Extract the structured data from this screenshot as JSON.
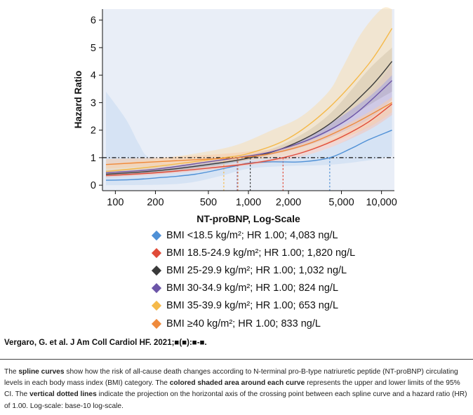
{
  "chart_data": {
    "type": "line",
    "xlabel": "NT-proBNP, Log-Scale",
    "ylabel": "Hazard Ratio",
    "xscale": "log10",
    "xlim": [
      80,
      12500
    ],
    "ylim": [
      -0.2,
      6.4
    ],
    "x_ticks": [
      {
        "value": 100,
        "label": "100"
      },
      {
        "value": 200,
        "label": "200"
      },
      {
        "value": 500,
        "label": "500"
      },
      {
        "value": 1000,
        "label": "1,000"
      },
      {
        "value": 2000,
        "label": "2,000"
      },
      {
        "value": 5000,
        "label": "5,000"
      },
      {
        "value": 10000,
        "label": "10,000"
      }
    ],
    "y_ticks": [
      {
        "value": 0,
        "label": "0"
      },
      {
        "value": 1,
        "label": "1"
      },
      {
        "value": 2,
        "label": "2"
      },
      {
        "value": 3,
        "label": "3"
      },
      {
        "value": 4,
        "label": "4"
      },
      {
        "value": 5,
        "label": "5"
      },
      {
        "value": 6,
        "label": "6"
      }
    ],
    "reference_line": {
      "y": 1,
      "style": "dash-dot",
      "color": "#111111"
    },
    "series": [
      {
        "name": "BMI <18.5 kg/m²",
        "color": "#4f90d6",
        "fill": "#c6daf2",
        "crossing": 4083,
        "points": [
          [
            85,
            0.18
          ],
          [
            130,
            0.2
          ],
          [
            200,
            0.26
          ],
          [
            400,
            0.4
          ],
          [
            800,
            0.7
          ],
          [
            1000,
            0.8
          ],
          [
            1500,
            0.85
          ],
          [
            2500,
            0.85
          ],
          [
            4083,
            1.0
          ],
          [
            6000,
            1.35
          ],
          [
            8000,
            1.65
          ],
          [
            12000,
            2.0
          ]
        ],
        "lower": [
          [
            85,
            0.0
          ],
          [
            300,
            0.05
          ],
          [
            600,
            0.32
          ],
          [
            1000,
            0.6
          ],
          [
            2000,
            0.7
          ],
          [
            4000,
            0.74
          ],
          [
            8000,
            0.9
          ],
          [
            12000,
            1.05
          ]
        ],
        "upper": [
          [
            85,
            3.4
          ],
          [
            120,
            2.4
          ],
          [
            150,
            1.5
          ],
          [
            180,
            1.0
          ],
          [
            300,
            0.72
          ],
          [
            600,
            1.05
          ],
          [
            1000,
            1.05
          ],
          [
            2500,
            1.07
          ],
          [
            5000,
            1.55
          ],
          [
            8000,
            2.2
          ],
          [
            12000,
            2.95
          ]
        ]
      },
      {
        "name": "BMI 18.5-24.9 kg/m²",
        "color": "#e04b38",
        "fill": "#f6c4ba",
        "crossing": 1820,
        "points": [
          [
            85,
            0.35
          ],
          [
            200,
            0.45
          ],
          [
            500,
            0.62
          ],
          [
            1000,
            0.78
          ],
          [
            1820,
            1.0
          ],
          [
            3000,
            1.3
          ],
          [
            5000,
            1.75
          ],
          [
            8000,
            2.3
          ],
          [
            12000,
            2.95
          ]
        ],
        "lower": [
          [
            85,
            0.28
          ],
          [
            200,
            0.38
          ],
          [
            500,
            0.55
          ],
          [
            1000,
            0.72
          ],
          [
            2000,
            0.93
          ],
          [
            4000,
            1.35
          ],
          [
            8000,
            2.0
          ],
          [
            12000,
            2.55
          ]
        ],
        "upper": [
          [
            85,
            0.45
          ],
          [
            200,
            0.55
          ],
          [
            500,
            0.7
          ],
          [
            1000,
            0.85
          ],
          [
            2000,
            1.1
          ],
          [
            4000,
            1.6
          ],
          [
            8000,
            2.45
          ],
          [
            12000,
            3.05
          ]
        ]
      },
      {
        "name": "BMI 25-29.9 kg/m²",
        "color": "#3a3a3a",
        "fill": "#a8a8a8",
        "crossing": 1032,
        "points": [
          [
            85,
            0.4
          ],
          [
            200,
            0.52
          ],
          [
            500,
            0.75
          ],
          [
            1032,
            1.0
          ],
          [
            2000,
            1.42
          ],
          [
            4000,
            2.2
          ],
          [
            8000,
            3.5
          ],
          [
            12000,
            4.5
          ]
        ],
        "lower": [
          [
            85,
            0.32
          ],
          [
            200,
            0.45
          ],
          [
            500,
            0.68
          ],
          [
            1000,
            0.92
          ],
          [
            2000,
            1.3
          ],
          [
            4000,
            1.95
          ],
          [
            8000,
            2.9
          ],
          [
            12000,
            3.4
          ]
        ],
        "upper": [
          [
            85,
            0.5
          ],
          [
            200,
            0.62
          ],
          [
            500,
            0.84
          ],
          [
            1000,
            1.08
          ],
          [
            2000,
            1.58
          ],
          [
            4000,
            2.55
          ],
          [
            8000,
            4.2
          ],
          [
            12000,
            5.0
          ]
        ]
      },
      {
        "name": "BMI 30-34.9 kg/m²",
        "color": "#6c55a8",
        "fill": "#b9acd8",
        "crossing": 824,
        "points": [
          [
            85,
            0.45
          ],
          [
            200,
            0.58
          ],
          [
            500,
            0.85
          ],
          [
            824,
            1.0
          ],
          [
            1500,
            1.22
          ],
          [
            3000,
            1.7
          ],
          [
            6000,
            2.5
          ],
          [
            12000,
            3.8
          ]
        ],
        "lower": [
          [
            85,
            0.38
          ],
          [
            200,
            0.5
          ],
          [
            500,
            0.78
          ],
          [
            1000,
            0.98
          ],
          [
            2000,
            1.25
          ],
          [
            4000,
            1.72
          ],
          [
            8000,
            2.4
          ],
          [
            12000,
            3.1
          ]
        ],
        "upper": [
          [
            85,
            0.55
          ],
          [
            200,
            0.66
          ],
          [
            500,
            0.92
          ],
          [
            1000,
            1.12
          ],
          [
            2000,
            1.48
          ],
          [
            4000,
            2.2
          ],
          [
            8000,
            3.3
          ],
          [
            12000,
            4.4
          ]
        ]
      },
      {
        "name": "BMI 35-39.9 kg/m²",
        "color": "#f5b94a",
        "fill": "#f7dfb2",
        "crossing": 653,
        "points": [
          [
            85,
            0.5
          ],
          [
            200,
            0.68
          ],
          [
            500,
            0.92
          ],
          [
            653,
            1.0
          ],
          [
            1000,
            1.15
          ],
          [
            2000,
            1.7
          ],
          [
            4000,
            2.8
          ],
          [
            8000,
            4.4
          ],
          [
            12000,
            5.7
          ]
        ],
        "lower": [
          [
            85,
            0.4
          ],
          [
            200,
            0.55
          ],
          [
            500,
            0.8
          ],
          [
            1000,
            1.0
          ],
          [
            2000,
            1.4
          ],
          [
            4000,
            2.2
          ],
          [
            8000,
            3.2
          ],
          [
            12000,
            4.0
          ]
        ],
        "upper": [
          [
            85,
            0.75
          ],
          [
            200,
            0.95
          ],
          [
            400,
            1.15
          ],
          [
            800,
            1.45
          ],
          [
            1500,
            2.0
          ],
          [
            2500,
            2.5
          ],
          [
            4000,
            3.4
          ],
          [
            5000,
            4.2
          ],
          [
            7000,
            5.5
          ],
          [
            10000,
            6.4
          ],
          [
            12000,
            6.4
          ]
        ]
      },
      {
        "name": "BMI ≥40 kg/m²",
        "color": "#ef8a3c",
        "fill": "#f7ccaa",
        "crossing": 833,
        "points": [
          [
            85,
            0.75
          ],
          [
            200,
            0.85
          ],
          [
            500,
            0.95
          ],
          [
            833,
            1.0
          ],
          [
            1500,
            1.15
          ],
          [
            3000,
            1.55
          ],
          [
            6000,
            2.2
          ],
          [
            12000,
            3.0
          ]
        ],
        "lower": [
          [
            85,
            0.6
          ],
          [
            200,
            0.7
          ],
          [
            500,
            0.82
          ],
          [
            1000,
            0.9
          ],
          [
            2000,
            1.1
          ],
          [
            4000,
            1.5
          ],
          [
            8000,
            2.1
          ],
          [
            12000,
            2.65
          ]
        ],
        "upper": [
          [
            85,
            0.95
          ],
          [
            200,
            1.0
          ],
          [
            500,
            1.1
          ],
          [
            1000,
            1.22
          ],
          [
            2000,
            1.4
          ],
          [
            4000,
            1.9
          ],
          [
            8000,
            2.65
          ],
          [
            12000,
            3.2
          ]
        ]
      }
    ]
  },
  "legend": {
    "items": [
      {
        "color": "#4f90d6",
        "text": "BMI <18.5 kg/m²; HR 1.00; 4,083 ng/L"
      },
      {
        "color": "#e04b38",
        "text": "BMI 18.5-24.9 kg/m²; HR 1.00; 1,820 ng/L"
      },
      {
        "color": "#3a3a3a",
        "text": "BMI 25-29.9 kg/m²; HR 1.00; 1,032 ng/L"
      },
      {
        "color": "#6c55a8",
        "text": "BMI 30-34.9 kg/m²; HR 1.00; 824 ng/L"
      },
      {
        "color": "#f5b94a",
        "text": "BMI 35-39.9 kg/m²; HR 1.00; 653 ng/L"
      },
      {
        "color": "#ef8a3c",
        "text": "BMI ≥40 kg/m²; HR 1.00; 833 ng/L"
      }
    ]
  },
  "citation": "Vergaro, G. et al. J Am Coll Cardiol HF. 2021;■(■):■-■.",
  "caption": {
    "p1": "The ",
    "b1": "spline curves",
    "p2": " show how the risk of all-cause death changes according to N-terminal pro-B-type natriuretic peptide (NT-proBNP) circulating levels in each body mass index (BMI) category. The ",
    "b2": "colored shaded area around each curve",
    "p3": " represents the upper and lower limits of the 95% CI. The ",
    "b3": "vertical dotted lines",
    "p4": " indicate the projection on the horizontal axis of the crossing point between each spline curve and a hazard ratio (HR) of 1.00. Log-scale: base-10 log-scale."
  }
}
